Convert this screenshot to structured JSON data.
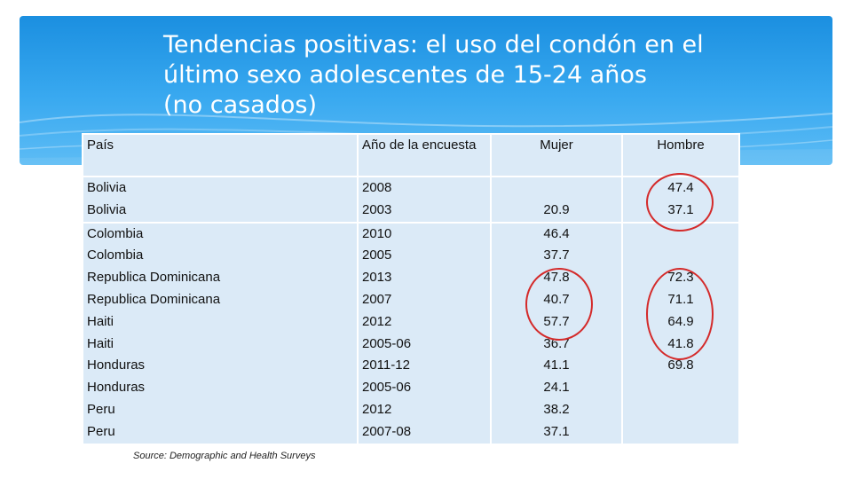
{
  "title": {
    "line1": "Tendencias positivas: el uso del condón en el",
    "line2": "último sexo adolescentes de 15-24 años",
    "line3": "(no casados)"
  },
  "table": {
    "headers": {
      "country": "País",
      "year": "Año de la encuesta",
      "women": "Mujer",
      "men": "Hombre"
    },
    "bolivia": {
      "countries": "Bolivia\nBolivia",
      "years": "2008\n2003",
      "women": "\n20.9",
      "men": "47.4\n37.1"
    },
    "rest": {
      "countries": "Colombia\nColombia\nRepublica Dominicana\nRepublica Dominicana\nHaiti\nHaiti\nHonduras\nHonduras\nPeru\nPeru",
      "years": "2010\n2005\n2013\n2007\n2012\n2005-06\n2011-12\n2005-06\n2012\n2007-08",
      "women": "46.4\n37.7\n47.8\n40.7\n57.7\n36.7\n41.1\n24.1\n38.2\n37.1",
      "men": "\n\n72.3\n71.1\n64.9\n41.8\n69.8\n\n\n"
    }
  },
  "source": "Source: Demographic and Health Surveys",
  "colors": {
    "accent": "#2196e8",
    "cell": "#dbeaf7",
    "circle": "#d42a2a"
  }
}
